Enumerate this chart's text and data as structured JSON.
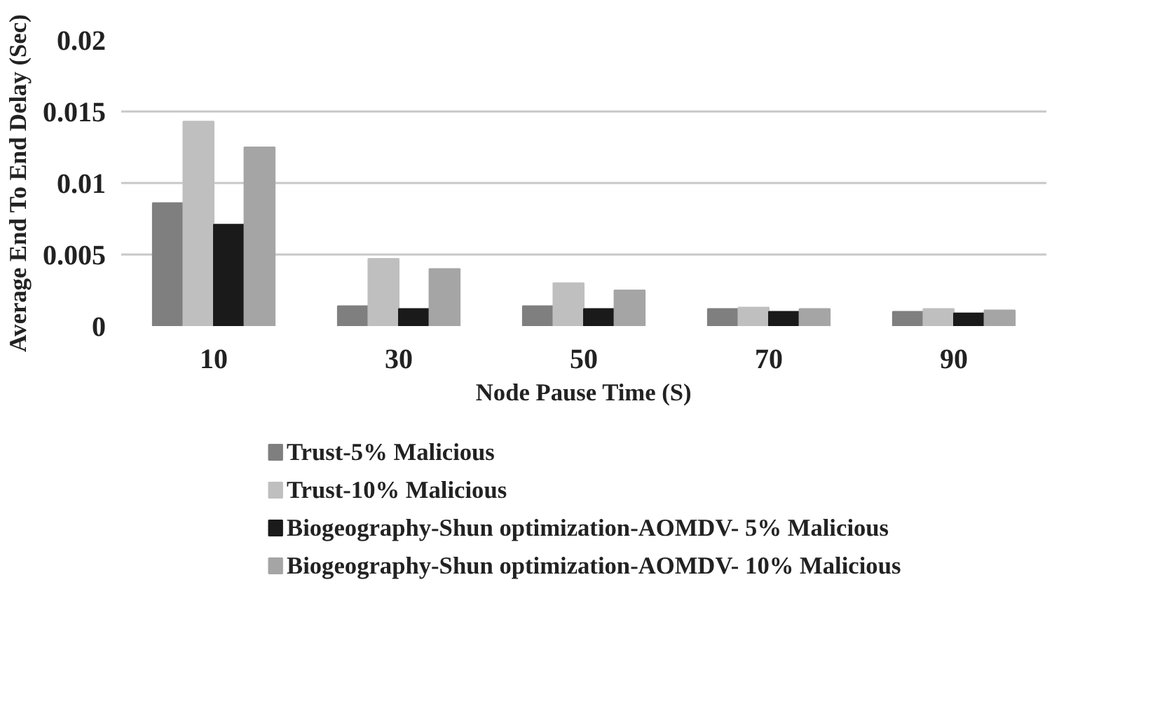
{
  "chart_data": {
    "type": "bar",
    "xlabel": "Node Pause Time (S)",
    "ylabel": "Average End To End Delay (Sec)",
    "categories": [
      "10",
      "30",
      "50",
      "70",
      "90"
    ],
    "series": [
      {
        "name": "Trust-5% Malicious",
        "color": "#7f7f7f",
        "values": [
          0.0086,
          0.0014,
          0.0014,
          0.0012,
          0.001
        ]
      },
      {
        "name": "Trust-10% Malicious",
        "color": "#bfbfbf",
        "values": [
          0.0143,
          0.0047,
          0.003,
          0.0013,
          0.0012
        ]
      },
      {
        "name": "Biogeography-Shun optimization-AOMDV- 5% Malicious",
        "color": "#1a1a1a",
        "values": [
          0.0071,
          0.0012,
          0.0012,
          0.001,
          0.0009
        ]
      },
      {
        "name": "Biogeography-Shun optimization-AOMDV- 10% Malicious",
        "color": "#a5a5a5",
        "values": [
          0.0125,
          0.004,
          0.0025,
          0.0012,
          0.0011
        ]
      }
    ],
    "ylim": [
      0,
      0.02
    ],
    "yticks": [
      0,
      0.005,
      0.01,
      0.015,
      0.02
    ],
    "grid": "y",
    "legend": "bottom"
  }
}
